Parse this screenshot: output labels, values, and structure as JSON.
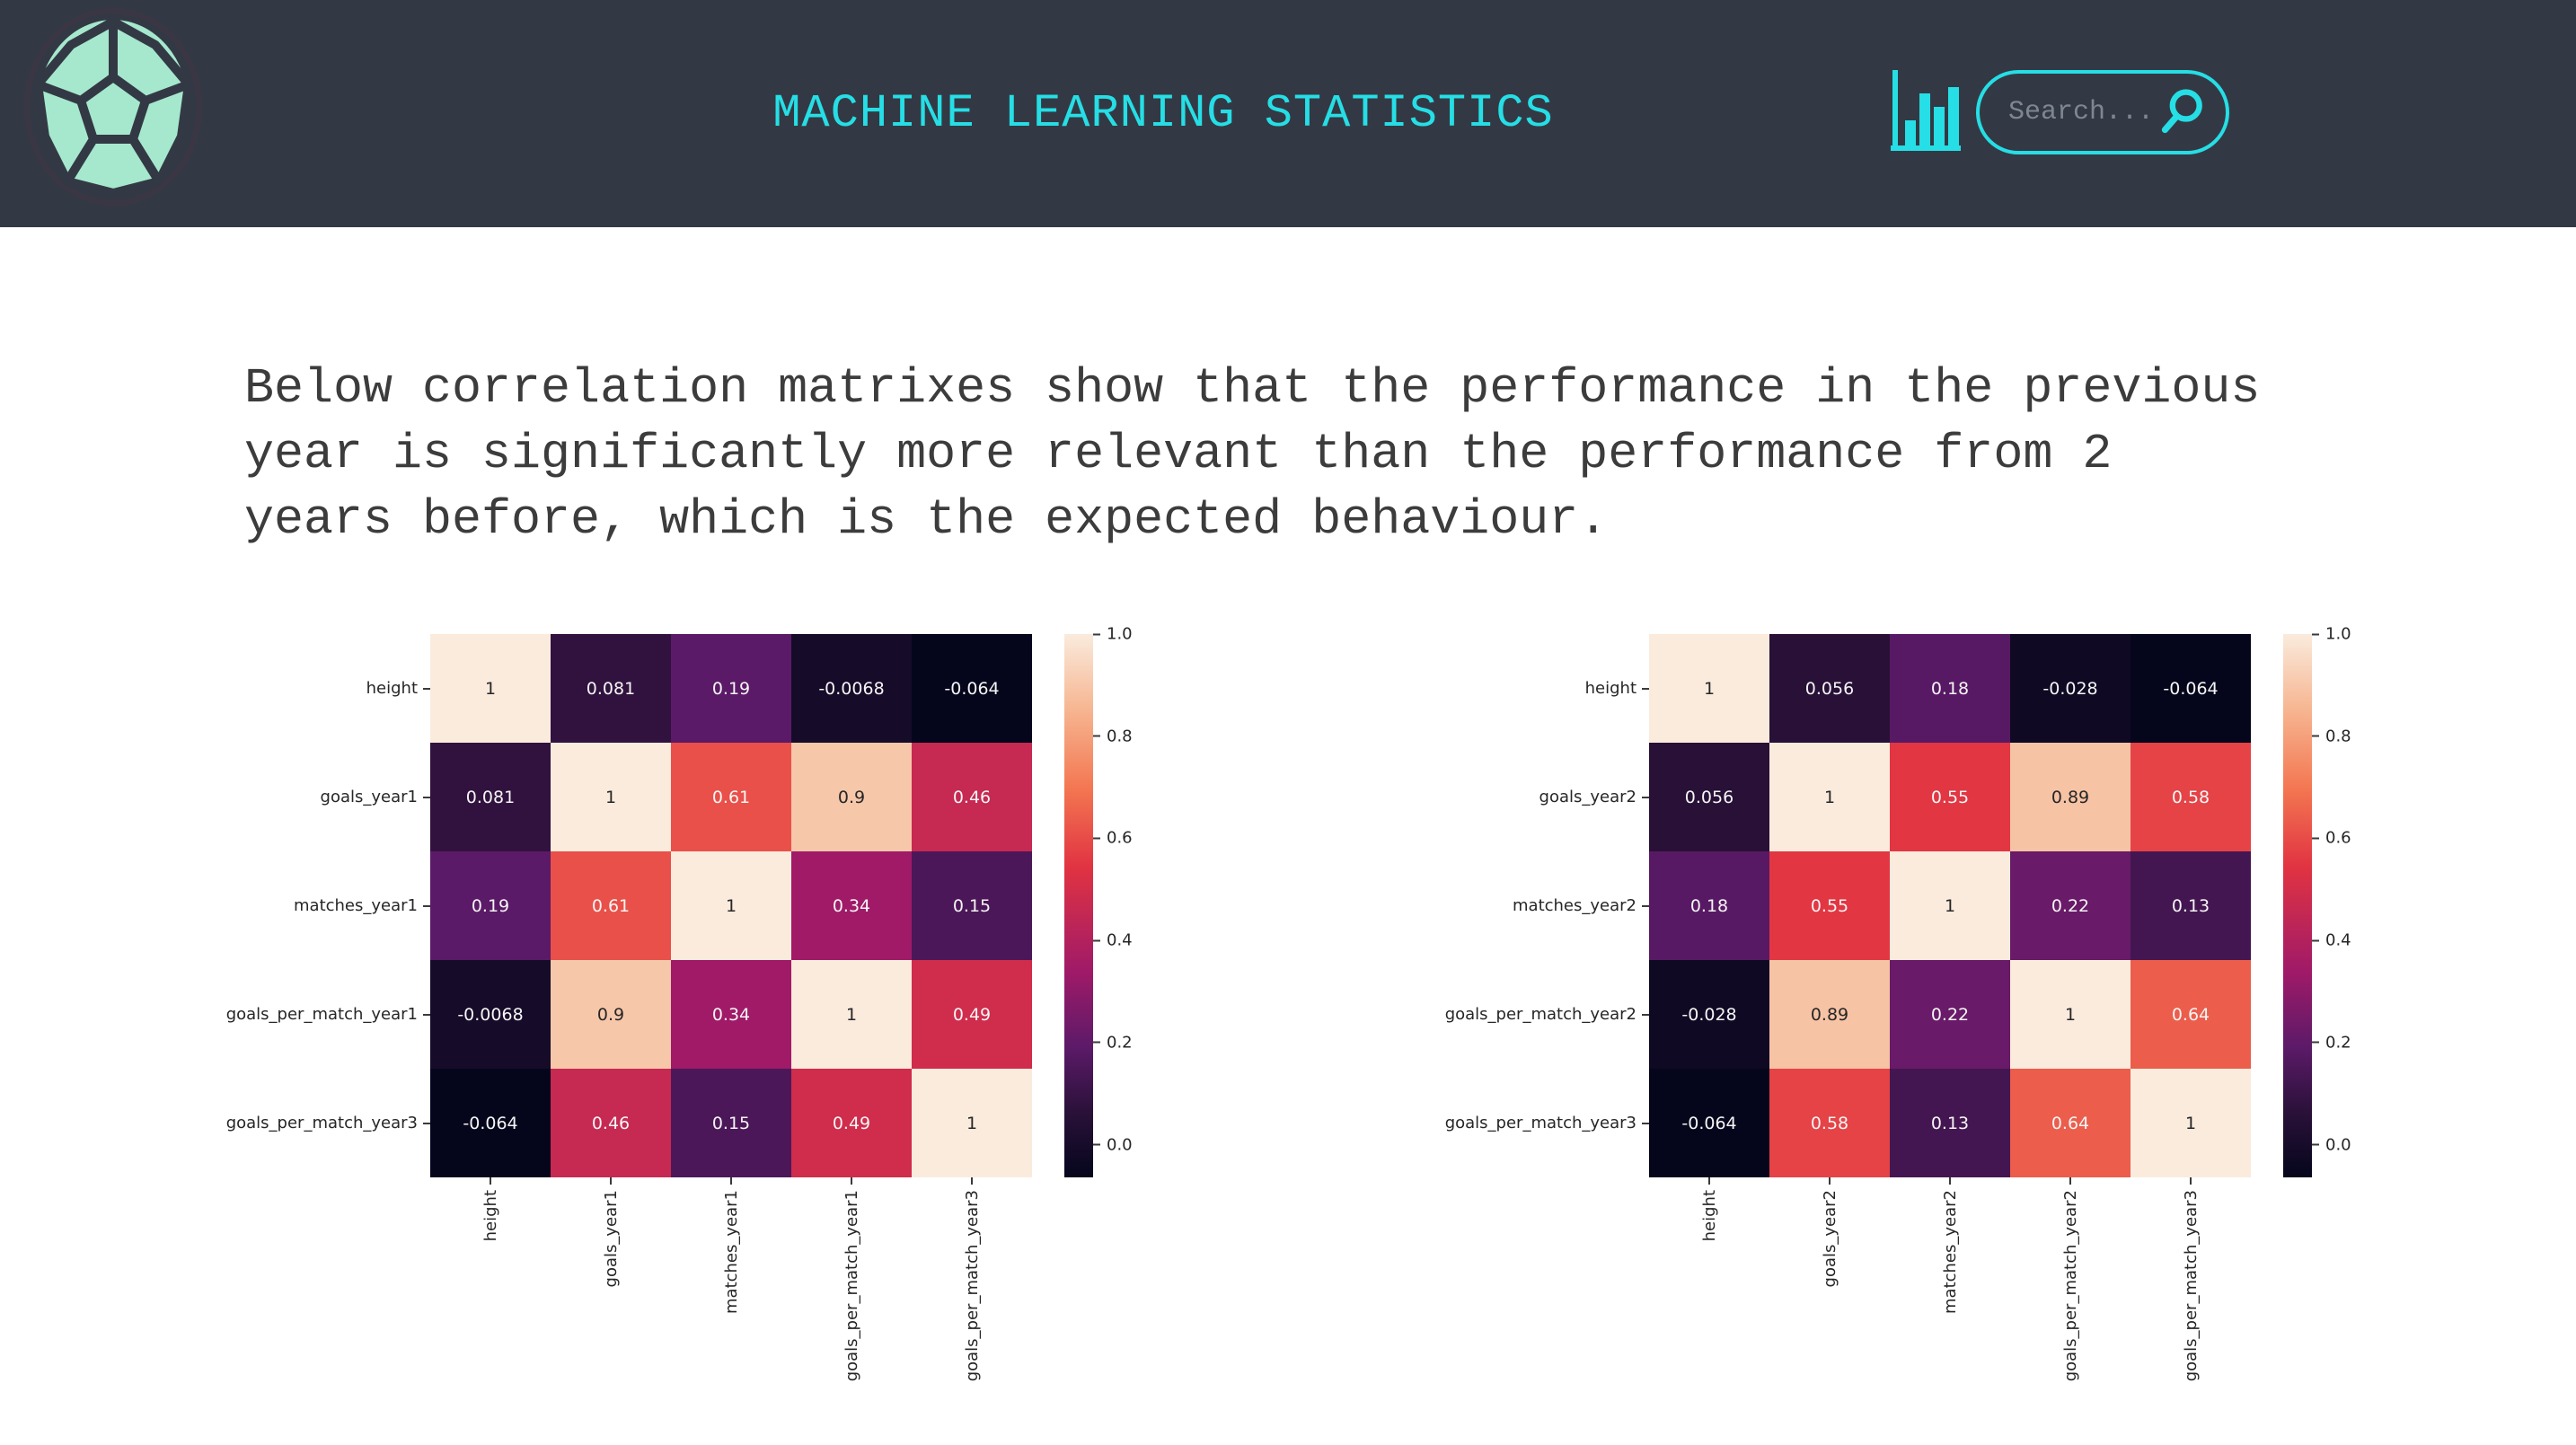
{
  "header": {
    "title": "MACHINE LEARNING STATISTICS",
    "search": {
      "placeholder": "Search...",
      "value": ""
    },
    "icons": [
      "soccer-ball-logo",
      "bar-chart-icon",
      "search-icon"
    ],
    "colors": {
      "bar_bg": "#333944",
      "accent": "#26dee5",
      "logo_mint": "#a6e8cd",
      "placeholder_gray": "#7e8791"
    }
  },
  "intro": {
    "text": "Below correlation matrixes show that the performance in the previous year is significantly more relevant than the performance from 2 years before, which is the expected behaviour."
  },
  "theme": {
    "colormap": "rocket",
    "colormap_stops": [
      [
        0,
        "#05061C"
      ],
      [
        0.12,
        "#2A1139"
      ],
      [
        0.24,
        "#5C1A68"
      ],
      [
        0.38,
        "#A01A68"
      ],
      [
        0.571,
        "#E13342"
      ],
      [
        0.714,
        "#F37651"
      ],
      [
        0.857,
        "#F6B48F"
      ],
      [
        1,
        "#FAEBDD"
      ]
    ],
    "annot_dark": "#262626",
    "annot_light": "#F5F5F5"
  },
  "chart_data": [
    {
      "type": "heatmap",
      "name": "correlation-matrix-year1",
      "categories": [
        "height",
        "goals_year1",
        "matches_year1",
        "goals_per_match_year1",
        "goals_per_match_year3"
      ],
      "matrix": [
        [
          1,
          0.081,
          0.19,
          -0.0068,
          -0.064
        ],
        [
          0.081,
          1,
          0.61,
          0.9,
          0.46
        ],
        [
          0.19,
          0.61,
          1,
          0.34,
          0.15
        ],
        [
          -0.0068,
          0.9,
          0.34,
          1,
          0.49
        ],
        [
          -0.064,
          0.46,
          0.15,
          0.49,
          1
        ]
      ],
      "cell_labels": [
        [
          "1",
          "0.081",
          "0.19",
          "-0.0068",
          "-0.064"
        ],
        [
          "0.081",
          "1",
          "0.61",
          "0.9",
          "0.46"
        ],
        [
          "0.19",
          "0.61",
          "1",
          "0.34",
          "0.15"
        ],
        [
          "-0.0068",
          "0.9",
          "0.34",
          "1",
          "0.49"
        ],
        [
          "-0.064",
          "0.46",
          "0.15",
          "0.49",
          "1"
        ]
      ],
      "vmin": -0.064,
      "vmax": 1.0,
      "colormap": "rocket",
      "colorbar_position": "right",
      "colorbar_ticks": [
        1.0,
        0.8,
        0.6,
        0.4,
        0.2,
        0.0
      ],
      "colorbar_tick_labels": [
        "1.0",
        "0.8",
        "0.6",
        "0.4",
        "0.2",
        "0.0"
      ]
    },
    {
      "type": "heatmap",
      "name": "correlation-matrix-year2",
      "categories": [
        "height",
        "goals_year2",
        "matches_year2",
        "goals_per_match_year2",
        "goals_per_match_year3"
      ],
      "matrix": [
        [
          1,
          0.056,
          0.18,
          -0.028,
          -0.064
        ],
        [
          0.056,
          1,
          0.55,
          0.89,
          0.58
        ],
        [
          0.18,
          0.55,
          1,
          0.22,
          0.13
        ],
        [
          -0.028,
          0.89,
          0.22,
          1,
          0.64
        ],
        [
          -0.064,
          0.58,
          0.13,
          0.64,
          1
        ]
      ],
      "cell_labels": [
        [
          "1",
          "0.056",
          "0.18",
          "-0.028",
          "-0.064"
        ],
        [
          "0.056",
          "1",
          "0.55",
          "0.89",
          "0.58"
        ],
        [
          "0.18",
          "0.55",
          "1",
          "0.22",
          "0.13"
        ],
        [
          "-0.028",
          "0.89",
          "0.22",
          "1",
          "0.64"
        ],
        [
          "-0.064",
          "0.58",
          "0.13",
          "0.64",
          "1"
        ]
      ],
      "vmin": -0.064,
      "vmax": 1.0,
      "colormap": "rocket",
      "colorbar_position": "right",
      "colorbar_ticks": [
        1.0,
        0.8,
        0.6,
        0.4,
        0.2,
        0.0
      ],
      "colorbar_tick_labels": [
        "1.0",
        "0.8",
        "0.6",
        "0.4",
        "0.2",
        "0.0"
      ]
    }
  ]
}
